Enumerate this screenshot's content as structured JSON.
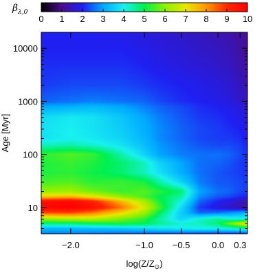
{
  "chart_data": {
    "type": "heatmap",
    "colorbar": {
      "label": "β",
      "label_subscript": "λ,0",
      "range": [
        0,
        10
      ],
      "ticks": [
        "0",
        "1",
        "2",
        "3",
        "4",
        "5",
        "6",
        "7",
        "8",
        "9",
        "10"
      ],
      "colors": [
        "#000000",
        "#4a0e8c",
        "#1f1ff2",
        "#00a8ff",
        "#19f0f0",
        "#00f050",
        "#8cf000",
        "#e8e800",
        "#ff9600",
        "#ff2800",
        "#ff0000"
      ]
    },
    "xlabel": "log(Z/Z",
    "xlabel_sub": "⊙",
    "xlabel_close": ")",
    "x_ticks": [
      {
        "value": -2.0,
        "label": "−2.0"
      },
      {
        "value": -1.0,
        "label": "−1.0"
      },
      {
        "value": -0.5,
        "label": "−0.5"
      },
      {
        "value": 0.0,
        "label": "0.0"
      },
      {
        "value": 0.3,
        "label": "0.3"
      }
    ],
    "xlim": [
      -2.4,
      0.4
    ],
    "ylabel": "Age [Myr]",
    "y_scale": "log",
    "ylim": [
      3.2,
      20000
    ],
    "y_ticks": [
      {
        "value": 10,
        "label": "10"
      },
      {
        "value": 100,
        "label": "100"
      },
      {
        "value": 1000,
        "label": "1000"
      },
      {
        "value": 10000,
        "label": "10000"
      }
    ],
    "x_grid": [
      -2.4,
      -2.0,
      -1.7,
      -1.3,
      -1.0,
      -0.8,
      -0.5,
      -0.25,
      0.0,
      0.15,
      0.3,
      0.4
    ],
    "age_grid": [
      3.2,
      4,
      5,
      6,
      8,
      10,
      13,
      16,
      20,
      30,
      45,
      70,
      100,
      150,
      200,
      300,
      500,
      800,
      1000,
      2000,
      5000,
      10000,
      20000
    ],
    "values": [
      [
        2.7,
        2.7,
        2.6,
        2.5,
        2.4,
        2.3,
        2.3,
        2.2,
        2.1,
        2.1,
        2.1,
        2.1
      ],
      [
        3.2,
        3.2,
        3.3,
        3.4,
        3.6,
        3.8,
        3.9,
        4.0,
        4.0,
        4.1,
        4.3,
        4.4
      ],
      [
        4.8,
        4.8,
        5.0,
        5.2,
        5.0,
        4.6,
        4.2,
        4.3,
        4.8,
        5.8,
        6.6,
        7.2
      ],
      [
        6.0,
        6.3,
        6.4,
        5.8,
        5.3,
        4.5,
        3.6,
        4.2,
        4.6,
        4.2,
        4.2,
        4.2
      ],
      [
        8.7,
        8.8,
        8.3,
        7.2,
        6.2,
        5.0,
        3.5,
        2.5,
        2.6,
        2.8,
        3.0,
        3.2
      ],
      [
        9.8,
        10.0,
        9.6,
        8.3,
        6.8,
        5.5,
        3.7,
        2.2,
        1.8,
        1.6,
        1.4,
        1.2
      ],
      [
        9.6,
        9.8,
        9.2,
        7.6,
        6.3,
        5.2,
        4.1,
        2.5,
        2.0,
        1.8,
        1.5,
        1.3
      ],
      [
        7.4,
        7.6,
        7.0,
        6.0,
        5.5,
        5.0,
        4.5,
        2.8,
        2.4,
        2.3,
        2.1,
        2.0
      ],
      [
        6.1,
        6.2,
        5.8,
        5.4,
        5.6,
        5.3,
        4.8,
        3.0,
        2.6,
        2.5,
        2.3,
        2.2
      ],
      [
        5.5,
        5.6,
        5.3,
        5.4,
        5.2,
        4.5,
        3.6,
        2.7,
        2.4,
        2.4,
        2.3,
        2.2
      ],
      [
        5.2,
        5.3,
        5.1,
        4.8,
        4.3,
        3.8,
        3.1,
        2.6,
        2.4,
        2.3,
        2.2,
        2.1
      ],
      [
        5.2,
        5.4,
        5.2,
        4.8,
        4.3,
        3.6,
        3.0,
        2.6,
        2.5,
        2.4,
        2.2,
        2.1
      ],
      [
        5.3,
        5.6,
        5.4,
        4.4,
        3.6,
        3.0,
        2.7,
        2.6,
        2.6,
        2.5,
        2.3,
        2.1
      ],
      [
        4.3,
        4.4,
        4.2,
        3.8,
        3.3,
        2.9,
        2.6,
        2.4,
        2.3,
        2.3,
        2.2,
        2.0
      ],
      [
        3.8,
        4.0,
        3.9,
        3.6,
        3.2,
        2.8,
        2.5,
        2.3,
        2.2,
        2.2,
        2.1,
        1.9
      ],
      [
        3.8,
        4.0,
        3.8,
        3.5,
        3.1,
        2.8,
        2.5,
        2.3,
        2.2,
        2.1,
        2.0,
        1.8
      ],
      [
        3.7,
        3.9,
        3.8,
        3.4,
        3.0,
        2.7,
        2.4,
        2.2,
        2.1,
        2.0,
        1.9,
        1.7
      ],
      [
        3.0,
        3.1,
        3.2,
        3.0,
        2.7,
        2.5,
        2.3,
        2.1,
        2.0,
        1.9,
        1.8,
        1.6
      ],
      [
        2.5,
        2.6,
        2.7,
        2.6,
        2.5,
        2.3,
        2.1,
        2.0,
        1.9,
        1.8,
        1.6,
        1.5
      ],
      [
        2.2,
        2.3,
        2.3,
        2.3,
        2.2,
        2.1,
        2.0,
        1.9,
        1.8,
        1.7,
        1.5,
        1.3
      ],
      [
        2.1,
        2.1,
        2.1,
        2.1,
        2.0,
        1.9,
        1.8,
        1.7,
        1.6,
        1.5,
        1.3,
        1.2
      ],
      [
        2.0,
        2.0,
        2.0,
        2.0,
        1.9,
        1.8,
        1.7,
        1.6,
        1.5,
        1.4,
        1.2,
        1.1
      ],
      [
        2.0,
        2.0,
        2.0,
        1.9,
        1.8,
        1.7,
        1.6,
        1.5,
        1.4,
        1.3,
        1.2,
        1.1
      ]
    ]
  }
}
